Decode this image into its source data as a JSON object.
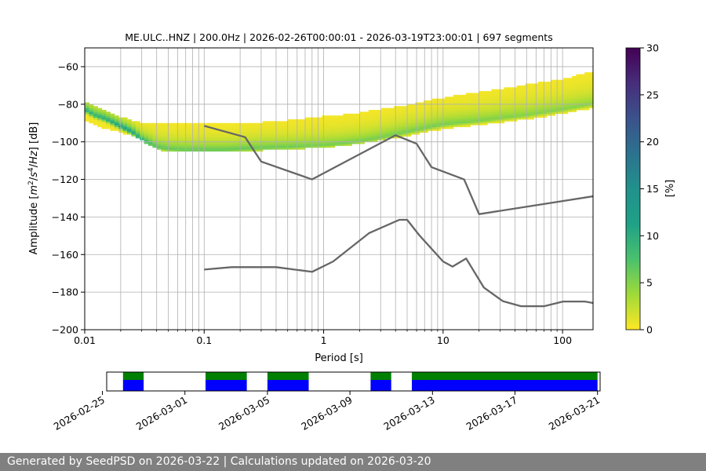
{
  "footer": {
    "text": "Generated by SeedPSD on 2026-03-22 | Calculations updated on 2026-03-20"
  },
  "chart_data": [
    {
      "type": "heatmap",
      "title": "ME.ULC..HNZ | 200.0Hz | 2026-02-26T00:00:01 - 2026-03-19T23:00:01 | 697 segments",
      "xlabel": "Period [s]",
      "ylabel_parts": [
        "Amplitude [",
        "m",
        "2",
        "/",
        "s",
        "4",
        "/",
        "Hz",
        "] [dB]"
      ],
      "x_scale": "log",
      "xlim": [
        0.01,
        180
      ],
      "ylim": [
        -200,
        -50
      ],
      "x_ticks": [
        {
          "value": 0.01,
          "label": "0.01"
        },
        {
          "value": 0.1,
          "label": "0.1"
        },
        {
          "value": 1,
          "label": "1"
        },
        {
          "value": 10,
          "label": "10"
        },
        {
          "value": 100,
          "label": "100"
        }
      ],
      "y_ticks": [
        {
          "value": -60,
          "label": "−60"
        },
        {
          "value": -80,
          "label": "−80"
        },
        {
          "value": -100,
          "label": "−100"
        },
        {
          "value": -120,
          "label": "−120"
        },
        {
          "value": -140,
          "label": "−140"
        },
        {
          "value": -160,
          "label": "−160"
        },
        {
          "value": -180,
          "label": "−180"
        },
        {
          "value": -200,
          "label": "−200"
        }
      ],
      "grid": true,
      "colorbar": {
        "label": "[%]",
        "range": [
          0,
          30
        ],
        "colormap": "viridis_r",
        "ticks": [
          {
            "value": 0,
            "label": "0"
          },
          {
            "value": 5,
            "label": "5"
          },
          {
            "value": 10,
            "label": "10"
          },
          {
            "value": 15,
            "label": "15"
          },
          {
            "value": 20,
            "label": "20"
          },
          {
            "value": 25,
            "label": "25"
          },
          {
            "value": 30,
            "label": "30"
          }
        ]
      },
      "psd_mode": {
        "period": [
          0.01,
          0.012,
          0.015,
          0.02,
          0.025,
          0.03,
          0.035,
          0.04,
          0.05,
          0.07,
          0.1,
          0.15,
          0.2,
          0.3,
          0.5,
          0.7,
          1,
          1.5,
          2,
          3,
          5,
          7,
          10,
          20,
          50,
          100,
          180
        ],
        "db": [
          -83,
          -86,
          -88,
          -92,
          -95,
          -99,
          -101,
          -103,
          -104,
          -104.5,
          -104.5,
          -104.5,
          -104,
          -103.5,
          -103,
          -102.5,
          -102,
          -101,
          -100,
          -98,
          -95,
          -93,
          -91,
          -89,
          -86,
          -83,
          -80
        ]
      },
      "psd_spread": {
        "period": [
          0.01,
          0.012,
          0.015,
          0.02,
          0.025,
          0.03,
          0.035,
          0.04,
          0.05,
          0.07,
          0.1,
          0.15,
          0.2,
          0.3,
          0.5,
          0.7,
          1,
          1.5,
          2,
          3,
          5,
          7,
          10,
          20,
          50,
          100,
          180
        ],
        "upper_db": [
          -79,
          -81,
          -84,
          -87,
          -89,
          -90,
          -91,
          -91,
          -91,
          -91,
          -91,
          -91,
          -91,
          -90,
          -89,
          -88,
          -87,
          -86,
          -85,
          -83,
          -81,
          -79,
          -77,
          -74,
          -70,
          -67,
          -63
        ],
        "lower_db": [
          -88,
          -91,
          -93,
          -95,
          -97,
          -99,
          -102,
          -104,
          -105,
          -105,
          -105,
          -105,
          -105,
          -104.5,
          -104,
          -103.5,
          -103,
          -102,
          -101,
          -99,
          -97,
          -95,
          -93,
          -91,
          -88,
          -85,
          -82
        ]
      },
      "series": [
        {
          "period": [
            0.1,
            0.22,
            0.3,
            0.8,
            4,
            6,
            8,
            15,
            20,
            180
          ],
          "db": [
            -91.5,
            -97.5,
            -110.5,
            -120,
            -96.5,
            -101,
            -113.5,
            -120,
            -138.5,
            -129
          ]
        },
        {
          "period": [
            0.1,
            0.17,
            0.4,
            0.8,
            1.2,
            2.4,
            4.3,
            5,
            6.3,
            10,
            12,
            15.6,
            21.9,
            31.6,
            45,
            70,
            101,
            154,
            180
          ],
          "db": [
            -168,
            -166.7,
            -166.7,
            -169.2,
            -163.7,
            -148.6,
            -141.5,
            -141.5,
            -149.6,
            -163.7,
            -166.4,
            -162.1,
            -177.5,
            -184.8,
            -187.5,
            -187.5,
            -185,
            -185,
            -185.8
          ]
        }
      ]
    },
    {
      "type": "timeline",
      "x_ticks": [
        {
          "value": "2026-02-25",
          "label": "2026-02-25"
        },
        {
          "value": "2026-03-01",
          "label": "2026-03-01"
        },
        {
          "value": "2026-03-05",
          "label": "2026-03-05"
        },
        {
          "value": "2026-03-09",
          "label": "2026-03-09"
        },
        {
          "value": "2026-03-13",
          "label": "2026-03-13"
        },
        {
          "value": "2026-03-17",
          "label": "2026-03-17"
        },
        {
          "value": "2026-03-21",
          "label": "2026-03-21"
        }
      ],
      "xlim": [
        "2026-02-25T05:00",
        "2026-03-21T03:00"
      ],
      "colors": {
        "top": "#008000",
        "bottom": "#0000ff"
      },
      "segments": [
        {
          "start": "2026-02-26T00:00",
          "end": "2026-02-27T00:00"
        },
        {
          "start": "2026-03-02T00:00",
          "end": "2026-03-04T00:00"
        },
        {
          "start": "2026-03-05T00:00",
          "end": "2026-03-07T00:00"
        },
        {
          "start": "2026-03-10T00:00",
          "end": "2026-03-11T00:00"
        },
        {
          "start": "2026-03-12T00:00",
          "end": "2026-03-21T00:00"
        }
      ]
    }
  ]
}
